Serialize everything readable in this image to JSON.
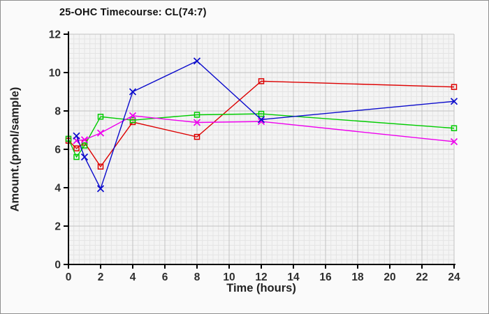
{
  "window": {
    "background": "#fafafa",
    "border_color": "#8f8f8f"
  },
  "chart_data": {
    "type": "line",
    "title": "25-OHC Timecourse: CL(74:7)",
    "xlabel": "Time (hours)",
    "ylabel": "Amount.(pmol/sample)",
    "x": [
      0,
      0.5,
      1,
      2,
      4,
      8,
      12,
      24
    ],
    "series": [
      {
        "name": "red-series",
        "color": "#dd0000",
        "marker": "square",
        "values": [
          6.45,
          6.05,
          6.35,
          5.1,
          7.42,
          6.65,
          9.55,
          9.25
        ]
      },
      {
        "name": "green-series",
        "color": "#00cc00",
        "marker": "square",
        "values": [
          6.55,
          5.6,
          6.2,
          7.7,
          7.52,
          7.8,
          7.85,
          7.1
        ]
      },
      {
        "name": "magenta-series",
        "color": "#ee00ee",
        "marker": "x",
        "values": [
          null,
          6.45,
          6.5,
          6.85,
          7.75,
          7.4,
          7.45,
          6.4
        ]
      },
      {
        "name": "blue-series",
        "color": "#0b0bcc",
        "marker": "x",
        "values": [
          null,
          6.7,
          5.6,
          3.95,
          9.0,
          10.6,
          7.55,
          8.5
        ]
      }
    ],
    "xlim": [
      0,
      24
    ],
    "ylim": [
      0,
      12
    ],
    "x_ticks": [
      0,
      2,
      4,
      6,
      8,
      10,
      12,
      14,
      16,
      18,
      20,
      22,
      24
    ],
    "y_ticks": [
      0,
      2,
      4,
      6,
      8,
      10,
      12
    ],
    "grid": {
      "on": true,
      "minor_x_step": 0.33333,
      "minor_y_step": 0.25,
      "minor_color": "#e4e4e4",
      "major_color": "#c2c2c2",
      "plot_background": "#f4f4f4"
    },
    "axis_color": "#000000",
    "tick_label_color": "#2e2e2e",
    "legend_position": "none"
  }
}
